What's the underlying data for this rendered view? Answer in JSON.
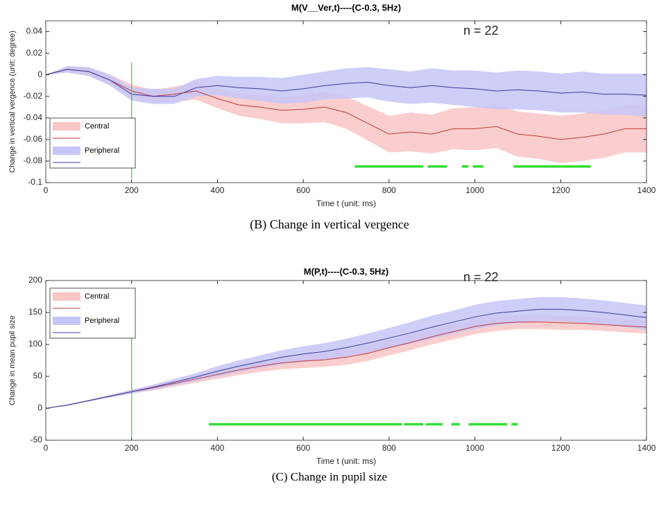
{
  "chart_data": [
    {
      "type": "line",
      "title": "M(V__Ver,t)----(C-0.3, 5Hz)",
      "annotation": "n = 22",
      "caption": "(B)  Change in vertical vergence",
      "x_label": "Time t (unit: ms)",
      "y_label": "Change in vertical vergence (unit: degree)",
      "x": [
        0,
        50,
        100,
        150,
        200,
        250,
        300,
        350,
        400,
        450,
        500,
        550,
        600,
        650,
        700,
        750,
        800,
        850,
        900,
        950,
        1000,
        1050,
        1100,
        1150,
        1200,
        1250,
        1300,
        1350,
        1400
      ],
      "series": [
        {
          "name": "Central",
          "color": "#c0393b",
          "band_color": "#f9c5c5",
          "values": [
            0,
            0.005,
            0.003,
            -0.005,
            -0.015,
            -0.02,
            -0.018,
            -0.015,
            -0.022,
            -0.028,
            -0.03,
            -0.033,
            -0.032,
            -0.03,
            -0.035,
            -0.045,
            -0.055,
            -0.053,
            -0.055,
            -0.05,
            -0.05,
            -0.048,
            -0.055,
            -0.057,
            -0.06,
            -0.058,
            -0.055,
            -0.05,
            -0.05
          ],
          "errors": [
            0,
            0.003,
            0.004,
            0.005,
            0.006,
            0.006,
            0.007,
            0.008,
            0.009,
            0.01,
            0.011,
            0.012,
            0.013,
            0.014,
            0.015,
            0.016,
            0.017,
            0.018,
            0.018,
            0.019,
            0.02,
            0.02,
            0.021,
            0.021,
            0.022,
            0.022,
            0.022,
            0.022,
            0.022
          ]
        },
        {
          "name": "Peripheral",
          "color": "#3a3a9a",
          "band_color": "#c5c5f7",
          "values": [
            0,
            0.005,
            0.003,
            -0.005,
            -0.018,
            -0.02,
            -0.02,
            -0.012,
            -0.01,
            -0.012,
            -0.013,
            -0.015,
            -0.013,
            -0.01,
            -0.008,
            -0.007,
            -0.01,
            -0.012,
            -0.01,
            -0.012,
            -0.013,
            -0.015,
            -0.014,
            -0.015,
            -0.017,
            -0.016,
            -0.018,
            -0.018,
            -0.019
          ],
          "errors": [
            0,
            0.003,
            0.004,
            0.005,
            0.006,
            0.007,
            0.007,
            0.008,
            0.009,
            0.01,
            0.011,
            0.012,
            0.013,
            0.013,
            0.014,
            0.014,
            0.015,
            0.015,
            0.016,
            0.016,
            0.017,
            0.017,
            0.018,
            0.018,
            0.018,
            0.019,
            0.019,
            0.019,
            0.02
          ]
        }
      ],
      "vline": 200,
      "vline_color": "#33dd33",
      "significance": {
        "y": -0.085,
        "color": "#33dd33",
        "intervals": [
          [
            720,
            880
          ],
          [
            890,
            935
          ],
          [
            970,
            985
          ],
          [
            995,
            1020
          ],
          [
            1090,
            1270
          ]
        ]
      },
      "xlim": [
        0,
        1400
      ],
      "xticks": [
        0,
        200,
        400,
        600,
        800,
        1000,
        1200,
        1400
      ],
      "ylim": [
        -0.1,
        0.05
      ],
      "yticks": [
        -0.1,
        -0.08,
        -0.06,
        -0.04,
        -0.02,
        0,
        0.02,
        0.04
      ],
      "legend": "lower left"
    },
    {
      "type": "line",
      "title": "M(P,t)----(C-0.3, 5Hz)",
      "annotation": "n = 22",
      "caption": "(C)  Change in pupil size",
      "x_label": "Time t (unit: ms)",
      "y_label": "Change in mean pupil size",
      "x": [
        0,
        50,
        100,
        150,
        200,
        250,
        300,
        350,
        400,
        450,
        500,
        550,
        600,
        650,
        700,
        750,
        800,
        850,
        900,
        950,
        1000,
        1050,
        1100,
        1150,
        1200,
        1250,
        1300,
        1350,
        1400
      ],
      "series": [
        {
          "name": "Central",
          "color": "#c0393b",
          "band_color": "#f9c5c5",
          "values": [
            0,
            5,
            12,
            19,
            26,
            32,
            39,
            46,
            53,
            60,
            66,
            71,
            74,
            76,
            80,
            86,
            95,
            103,
            112,
            120,
            128,
            133,
            135,
            135,
            134,
            133,
            131,
            129,
            127
          ],
          "errors": [
            0,
            1,
            1,
            2,
            3,
            4,
            5,
            6,
            7,
            8,
            9,
            10,
            11,
            11,
            12,
            12,
            12,
            12,
            12,
            12,
            12,
            12,
            11,
            11,
            11,
            10,
            10,
            10,
            10
          ]
        },
        {
          "name": "Peripheral",
          "color": "#3a3a9a",
          "band_color": "#c5c5f7",
          "values": [
            0,
            5,
            12,
            19,
            26,
            33,
            41,
            49,
            58,
            66,
            73,
            80,
            85,
            89,
            95,
            102,
            110,
            118,
            127,
            135,
            143,
            149,
            152,
            155,
            155,
            153,
            150,
            146,
            142
          ],
          "errors": [
            0,
            1,
            1,
            2,
            3,
            4,
            5,
            6,
            8,
            9,
            10,
            11,
            12,
            13,
            14,
            15,
            16,
            17,
            18,
            18,
            19,
            19,
            19,
            19,
            19,
            19,
            19,
            19,
            19
          ]
        }
      ],
      "vline": 200,
      "vline_color": "#33dd33",
      "significance": {
        "y": -25,
        "color": "#33dd33",
        "intervals": [
          [
            380,
            830
          ],
          [
            835,
            880
          ],
          [
            885,
            925
          ],
          [
            945,
            965
          ],
          [
            985,
            1075
          ],
          [
            1085,
            1100
          ]
        ]
      },
      "xlim": [
        0,
        1400
      ],
      "xticks": [
        0,
        200,
        400,
        600,
        800,
        1000,
        1200,
        1400
      ],
      "ylim": [
        -50,
        200
      ],
      "yticks": [
        -50,
        0,
        50,
        100,
        150,
        200
      ],
      "legend": "upper left"
    }
  ]
}
